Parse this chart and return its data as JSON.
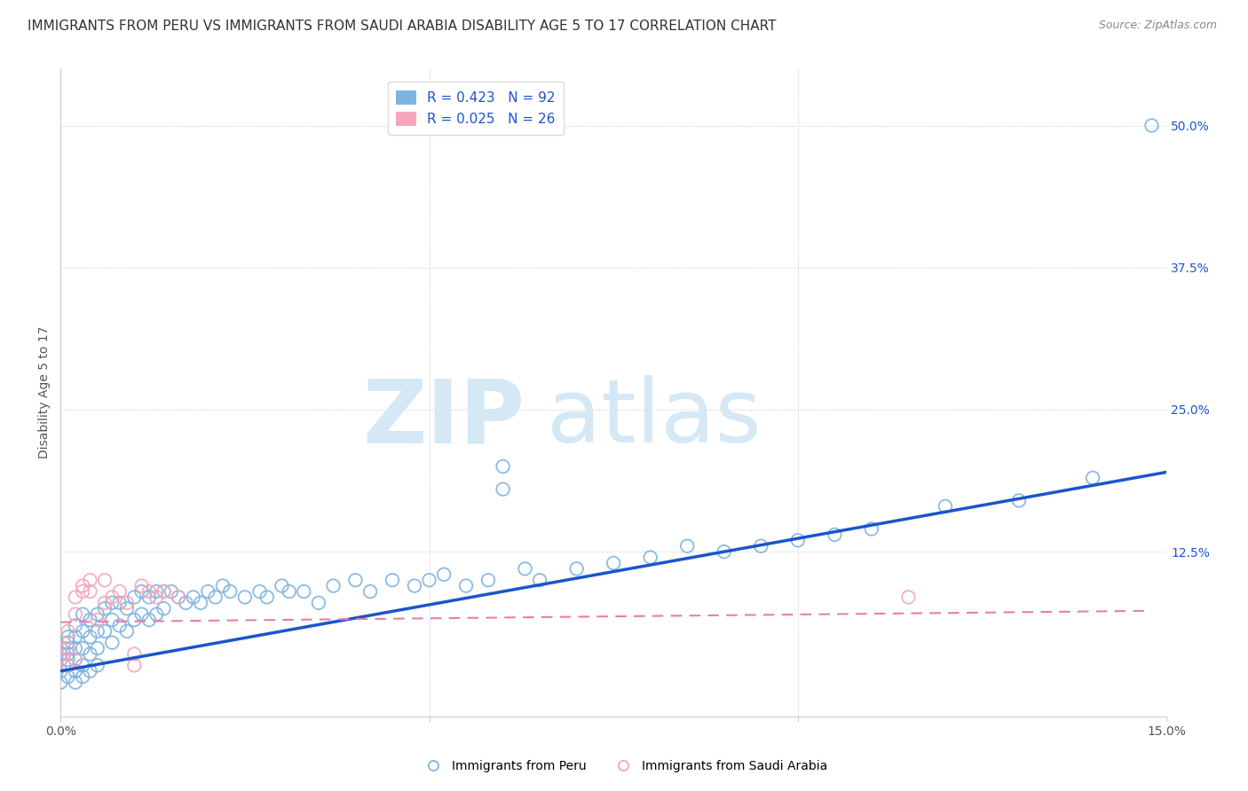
{
  "title": "IMMIGRANTS FROM PERU VS IMMIGRANTS FROM SAUDI ARABIA DISABILITY AGE 5 TO 17 CORRELATION CHART",
  "source": "Source: ZipAtlas.com",
  "ylabel": "Disability Age 5 to 17",
  "xlim": [
    0.0,
    0.15
  ],
  "ylim": [
    -0.02,
    0.55
  ],
  "ytick_labels": [
    "12.5%",
    "25.0%",
    "37.5%",
    "50.0%"
  ],
  "ytick_positions": [
    0.125,
    0.25,
    0.375,
    0.5
  ],
  "legend_r1": "R = 0.423",
  "legend_n1": "N = 92",
  "legend_r2": "R = 0.025",
  "legend_n2": "N = 26",
  "color_peru": "#7EB4E2",
  "color_saudi": "#F4A7B9",
  "color_blue_line": "#1A55CC",
  "color_pink_line": "#E87DA8",
  "color_grid": "#CCCCCC",
  "watermark_zip": "ZIP",
  "watermark_atlas": "atlas",
  "watermark_color": "#D5E8F5",
  "peru_x": [
    0.0,
    0.0,
    0.0,
    0.0,
    0.0,
    0.001,
    0.001,
    0.001,
    0.001,
    0.001,
    0.001,
    0.001,
    0.002,
    0.002,
    0.002,
    0.002,
    0.002,
    0.002,
    0.003,
    0.003,
    0.003,
    0.003,
    0.003,
    0.004,
    0.004,
    0.004,
    0.004,
    0.005,
    0.005,
    0.005,
    0.005,
    0.006,
    0.006,
    0.007,
    0.007,
    0.007,
    0.008,
    0.008,
    0.009,
    0.009,
    0.01,
    0.01,
    0.011,
    0.011,
    0.012,
    0.012,
    0.013,
    0.013,
    0.014,
    0.014,
    0.015,
    0.016,
    0.017,
    0.018,
    0.019,
    0.02,
    0.021,
    0.022,
    0.023,
    0.025,
    0.027,
    0.028,
    0.03,
    0.031,
    0.033,
    0.035,
    0.037,
    0.04,
    0.042,
    0.045,
    0.048,
    0.05,
    0.052,
    0.055,
    0.058,
    0.06,
    0.063,
    0.065,
    0.07,
    0.075,
    0.08,
    0.085,
    0.09,
    0.095,
    0.1,
    0.105,
    0.11,
    0.12,
    0.13,
    0.14,
    0.148,
    0.06
  ],
  "peru_y": [
    0.03,
    0.04,
    0.02,
    0.035,
    0.01,
    0.025,
    0.04,
    0.05,
    0.03,
    0.015,
    0.045,
    0.035,
    0.06,
    0.04,
    0.03,
    0.02,
    0.05,
    0.01,
    0.07,
    0.055,
    0.04,
    0.025,
    0.015,
    0.065,
    0.05,
    0.035,
    0.02,
    0.07,
    0.055,
    0.04,
    0.025,
    0.075,
    0.055,
    0.08,
    0.065,
    0.045,
    0.08,
    0.06,
    0.075,
    0.055,
    0.085,
    0.065,
    0.09,
    0.07,
    0.085,
    0.065,
    0.09,
    0.07,
    0.09,
    0.075,
    0.09,
    0.085,
    0.08,
    0.085,
    0.08,
    0.09,
    0.085,
    0.095,
    0.09,
    0.085,
    0.09,
    0.085,
    0.095,
    0.09,
    0.09,
    0.08,
    0.095,
    0.1,
    0.09,
    0.1,
    0.095,
    0.1,
    0.105,
    0.095,
    0.1,
    0.18,
    0.11,
    0.1,
    0.11,
    0.115,
    0.12,
    0.13,
    0.125,
    0.13,
    0.135,
    0.14,
    0.145,
    0.165,
    0.17,
    0.19,
    0.5,
    0.2
  ],
  "saudi_x": [
    0.0,
    0.0,
    0.001,
    0.001,
    0.001,
    0.002,
    0.002,
    0.002,
    0.003,
    0.003,
    0.004,
    0.004,
    0.005,
    0.006,
    0.006,
    0.007,
    0.008,
    0.009,
    0.01,
    0.01,
    0.011,
    0.012,
    0.013,
    0.014,
    0.016,
    0.115
  ],
  "saudi_y": [
    0.03,
    0.04,
    0.025,
    0.055,
    0.04,
    0.03,
    0.07,
    0.085,
    0.09,
    0.095,
    0.09,
    0.1,
    0.065,
    0.1,
    0.08,
    0.085,
    0.09,
    0.08,
    0.025,
    0.035,
    0.095,
    0.09,
    0.085,
    0.09,
    0.085,
    0.085
  ],
  "peru_line_x": [
    0.0,
    0.15
  ],
  "peru_line_y": [
    0.02,
    0.195
  ],
  "saudi_line_x": [
    0.0,
    0.148
  ],
  "saudi_line_y": [
    0.063,
    0.073
  ],
  "background_color": "#FFFFFF",
  "title_fontsize": 11,
  "source_fontsize": 9,
  "ylabel_fontsize": 10,
  "tick_fontsize": 10
}
